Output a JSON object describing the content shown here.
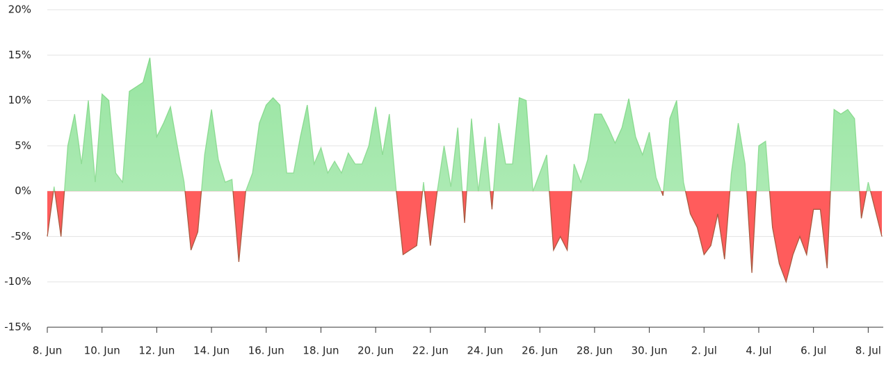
{
  "chart_data": {
    "type": "area",
    "x": [
      0,
      0.25,
      0.5,
      0.75,
      1,
      1.25,
      1.5,
      1.75,
      2,
      2.25,
      2.5,
      2.75,
      3,
      3.25,
      3.5,
      3.75,
      4,
      4.25,
      4.5,
      4.75,
      5,
      5.25,
      5.5,
      5.75,
      6,
      6.25,
      6.5,
      6.75,
      7,
      7.25,
      7.5,
      7.75,
      8,
      8.25,
      8.5,
      8.75,
      9,
      9.25,
      9.5,
      9.75,
      10,
      10.25,
      10.5,
      10.75,
      11,
      11.25,
      11.5,
      11.75,
      12,
      12.25,
      12.5,
      12.75,
      13,
      13.25,
      13.5,
      13.75,
      14,
      14.25,
      14.5,
      14.75,
      15,
      15.25,
      15.5,
      15.75,
      16,
      16.25,
      16.5,
      16.75,
      17,
      17.25,
      17.5,
      17.75,
      18,
      18.25,
      18.5,
      18.75,
      19,
      19.25,
      19.5,
      19.75,
      20,
      20.25,
      20.5,
      20.75,
      21,
      21.25,
      21.5,
      21.75,
      22,
      22.25,
      22.5,
      22.75,
      23,
      23.25,
      23.5,
      23.75,
      24,
      24.25,
      24.5,
      24.75,
      25,
      25.25,
      25.5,
      25.75,
      26,
      26.25,
      26.5,
      26.75,
      27,
      27.25,
      27.5,
      27.75,
      28,
      28.25,
      28.5,
      28.75,
      29,
      29.25,
      29.5,
      29.75,
      30,
      30.25,
      30.5
    ],
    "values": [
      -5,
      0.5,
      -5,
      5,
      8.5,
      3,
      10,
      1,
      10.7,
      10,
      2,
      1,
      11,
      11.5,
      12,
      14.7,
      6,
      7.5,
      9.3,
      5,
      1,
      -6.5,
      -4.5,
      4,
      9,
      3.5,
      1,
      1.3,
      -7.8,
      0,
      2,
      7.5,
      9.5,
      10.3,
      9.5,
      2,
      2,
      6,
      9.5,
      3,
      4.8,
      2,
      3.3,
      2,
      4.2,
      3,
      3,
      5,
      9.3,
      4,
      8.5,
      0.1,
      -7,
      -6.5,
      -6,
      1,
      -6,
      0,
      5,
      0.5,
      7,
      -3.5,
      8,
      0,
      6,
      -2,
      7.5,
      3,
      3,
      10.3,
      10,
      0,
      2,
      4,
      -6.5,
      -5,
      -6.5,
      3,
      1,
      3.5,
      8.5,
      8.5,
      7,
      5.3,
      7,
      10.2,
      6,
      4,
      6.5,
      1.5,
      -0.5,
      8,
      10,
      1,
      -2.5,
      -4,
      -7,
      -6,
      -2.5,
      -7.5,
      2,
      7.5,
      3,
      -9,
      5,
      5.5,
      -4,
      -8,
      -10,
      -7,
      -5,
      -7,
      -2,
      -2,
      -8.5,
      9,
      8.5,
      9,
      8,
      -3,
      1,
      -2,
      -5
    ],
    "positive_color": "#90e39a",
    "negative_color": "#ff5c5c",
    "xlim": [
      0,
      30.55
    ],
    "xticks": [
      {
        "value": 0,
        "label": "8. Jun"
      },
      {
        "value": 2,
        "label": "10. Jun"
      },
      {
        "value": 4,
        "label": "12. Jun"
      },
      {
        "value": 6,
        "label": "14. Jun"
      },
      {
        "value": 8,
        "label": "16. Jun"
      },
      {
        "value": 10,
        "label": "18. Jun"
      },
      {
        "value": 12,
        "label": "20. Jun"
      },
      {
        "value": 14,
        "label": "22. Jun"
      },
      {
        "value": 16,
        "label": "24. Jun"
      },
      {
        "value": 18,
        "label": "26. Jun"
      },
      {
        "value": 20,
        "label": "28. Jun"
      },
      {
        "value": 22,
        "label": "30. Jun"
      },
      {
        "value": 24,
        "label": "2. Jul"
      },
      {
        "value": 26,
        "label": "4. Jul"
      },
      {
        "value": 28,
        "label": "6. Jul"
      },
      {
        "value": 30,
        "label": "8. Jul"
      }
    ],
    "ylim": [
      -15,
      20
    ],
    "yticks": [
      {
        "value": -15,
        "label": "-15%"
      },
      {
        "value": -10,
        "label": "-10%"
      },
      {
        "value": -5,
        "label": "-5%"
      },
      {
        "value": 0,
        "label": "0%"
      },
      {
        "value": 5,
        "label": "5%"
      },
      {
        "value": 10,
        "label": "10%"
      },
      {
        "value": 15,
        "label": "15%"
      },
      {
        "value": 20,
        "label": "20%"
      }
    ],
    "grid": true
  }
}
